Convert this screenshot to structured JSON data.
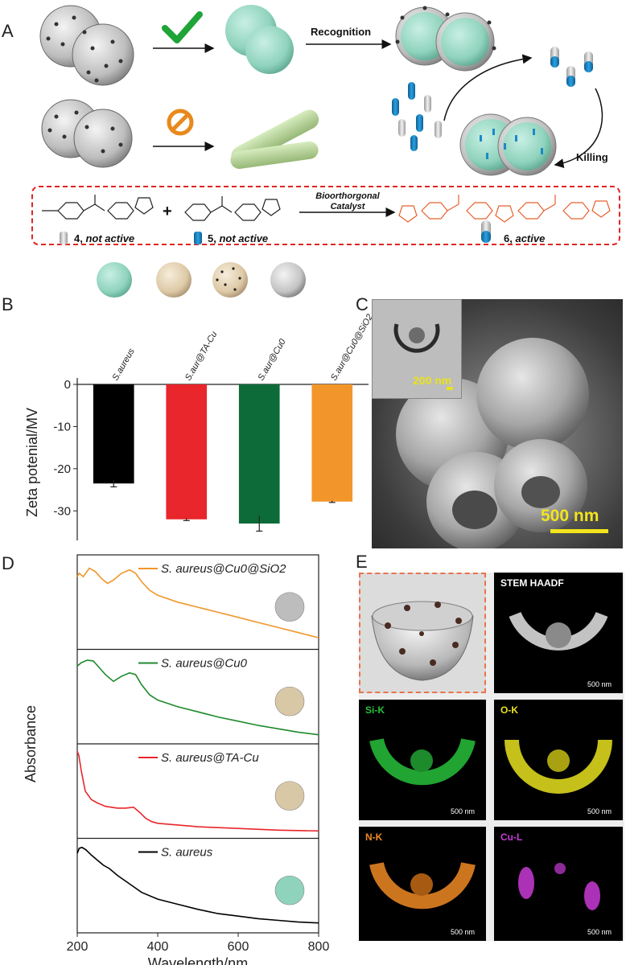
{
  "panels": {
    "A": {
      "letter": "A",
      "recognition": "Recognition",
      "killing": "Killing",
      "reaction": {
        "catalyst_line1": "Bioorthorgonal",
        "catalyst_line2": "Catalyst",
        "plus": "+",
        "compounds": [
          {
            "number": "4,",
            "text": "not active"
          },
          {
            "number": "5,",
            "text": "not active"
          },
          {
            "number": "6,",
            "text": "active"
          }
        ]
      },
      "colors": {
        "bacteria": "#8fd3bd",
        "rod": "#b9d89a",
        "dashed_box": "#e02424",
        "active_product": "#e8602c",
        "capsule_blue": "#1e88c8"
      }
    },
    "B": {
      "letter": "B",
      "header_labels": [
        "S.aureus",
        "S.aur@TA-Cu",
        "S.aur@Cu0",
        "S.aur@Cu0@SiO2"
      ]
    },
    "C": {
      "letter": "C",
      "inset_scale": "200 nm",
      "main_scale": "500 nm"
    },
    "D": {
      "letter": "D"
    },
    "E": {
      "letter": "E",
      "maps": [
        {
          "label": "STEM HAADF",
          "scale": "500 nm",
          "color": "#ffffff"
        },
        {
          "label": "Si-K",
          "scale": "500 nm",
          "color": "#27c13a"
        },
        {
          "label": "O-K",
          "scale": "500 nm",
          "color": "#e8e21e"
        },
        {
          "label": "N-K",
          "scale": "500 nm",
          "color": "#f08a24"
        },
        {
          "label": "Cu-L",
          "scale": "500 nm",
          "color": "#c93bd6"
        }
      ]
    }
  },
  "chart_data": [
    {
      "type": "bar",
      "panel": "B",
      "categories": [
        "S.aureus",
        "S.aur@TA-Cu",
        "S.aur@Cu0",
        "S.aur@Cu0@SiO2"
      ],
      "values": [
        -23.5,
        -32.0,
        -33.0,
        -27.8
      ],
      "errors": [
        0.8,
        0.3,
        1.8,
        0.2
      ],
      "colors": [
        "#000000",
        "#e8262b",
        "#0d6b3a",
        "#f2962b"
      ],
      "ylabel": "Zeta potenial/MV",
      "ylim": [
        -37,
        0
      ],
      "yticks": [
        0,
        -10,
        -20,
        -30
      ],
      "ytick_labels": [
        "0",
        "-10",
        "-20",
        "-30"
      ]
    },
    {
      "type": "line",
      "panel": "D",
      "xlabel": "Wavelength/nm",
      "ylabel": "Absorbance",
      "xlim": [
        200,
        800
      ],
      "xticks": [
        200,
        400,
        600,
        800
      ],
      "xtick_labels": [
        "200",
        "400",
        "600",
        "800"
      ],
      "series": [
        {
          "name": "S. aureus@Cu0@SiO2",
          "color": "#f2962b",
          "x": [
            200,
            205,
            215,
            230,
            245,
            260,
            275,
            290,
            310,
            330,
            345,
            360,
            380,
            400,
            450,
            500,
            550,
            600,
            650,
            700,
            750,
            800
          ],
          "y": [
            0.8,
            0.84,
            0.8,
            0.9,
            0.86,
            0.78,
            0.72,
            0.76,
            0.84,
            0.88,
            0.84,
            0.74,
            0.64,
            0.58,
            0.5,
            0.44,
            0.38,
            0.32,
            0.26,
            0.2,
            0.14,
            0.08
          ]
        },
        {
          "name": "S. aureus@Cu0",
          "color": "#1f8a2c",
          "x": [
            200,
            210,
            225,
            240,
            255,
            270,
            290,
            310,
            330,
            345,
            360,
            380,
            400,
            450,
            500,
            550,
            600,
            650,
            700,
            750,
            800
          ],
          "y": [
            0.86,
            0.9,
            0.93,
            0.92,
            0.84,
            0.76,
            0.68,
            0.74,
            0.78,
            0.76,
            0.64,
            0.52,
            0.46,
            0.38,
            0.32,
            0.26,
            0.21,
            0.16,
            0.12,
            0.08,
            0.05
          ]
        },
        {
          "name": "S. aureus@TA-Cu",
          "color": "#e8262b",
          "x": [
            200,
            204,
            210,
            220,
            235,
            250,
            270,
            300,
            320,
            340,
            355,
            370,
            385,
            400,
            450,
            500,
            600,
            700,
            800
          ],
          "y": [
            0.97,
            0.92,
            0.74,
            0.5,
            0.4,
            0.36,
            0.32,
            0.3,
            0.3,
            0.31,
            0.25,
            0.18,
            0.14,
            0.12,
            0.1,
            0.08,
            0.06,
            0.04,
            0.03
          ]
        },
        {
          "name": "S. aureus",
          "color": "#000000",
          "x": [
            200,
            205,
            212,
            222,
            235,
            250,
            265,
            280,
            300,
            330,
            360,
            400,
            450,
            500,
            550,
            600,
            650,
            700,
            750,
            800
          ],
          "y": [
            0.88,
            0.94,
            0.95,
            0.92,
            0.86,
            0.8,
            0.74,
            0.7,
            0.62,
            0.52,
            0.42,
            0.34,
            0.28,
            0.22,
            0.17,
            0.14,
            0.11,
            0.09,
            0.07,
            0.06
          ]
        }
      ]
    }
  ]
}
